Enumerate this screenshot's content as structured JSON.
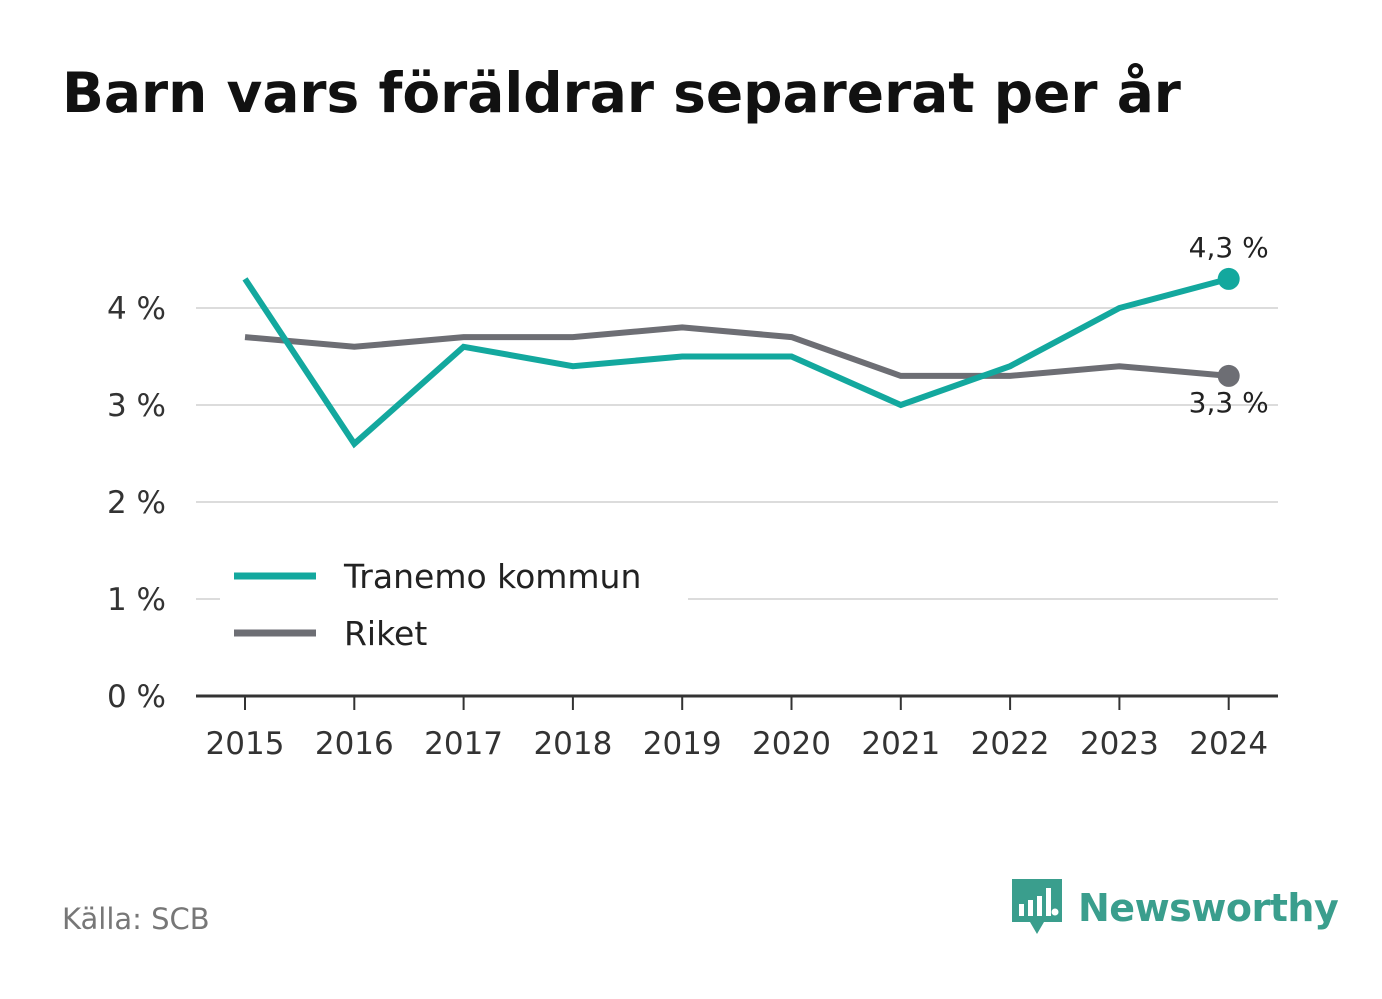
{
  "header": {
    "title": "Barn vars föräldrar separerat per år"
  },
  "chart_data": {
    "type": "line",
    "title": "Barn vars föräldrar separerat per år",
    "x": [
      "2015",
      "2016",
      "2017",
      "2018",
      "2019",
      "2020",
      "2021",
      "2022",
      "2023",
      "2024"
    ],
    "series": [
      {
        "name": "Tranemo kommun",
        "color": "#13a89e",
        "values": [
          4.3,
          2.6,
          3.6,
          3.4,
          3.5,
          3.5,
          3.0,
          3.4,
          4.0,
          4.3
        ],
        "end_label": "4,3 %"
      },
      {
        "name": "Riket",
        "color": "#6d6e74",
        "values": [
          3.7,
          3.6,
          3.7,
          3.7,
          3.8,
          3.7,
          3.3,
          3.3,
          3.4,
          3.3
        ],
        "end_label": "3,3 %"
      }
    ],
    "y_ticks": [
      {
        "value": 0,
        "label": "0 %"
      },
      {
        "value": 1,
        "label": "1 %"
      },
      {
        "value": 2,
        "label": "2 %"
      },
      {
        "value": 3,
        "label": "3 %"
      },
      {
        "value": 4,
        "label": "4 %"
      }
    ],
    "ylim": [
      0,
      4.5
    ],
    "grid": true,
    "legend_position": "bottom-left",
    "xlabel": "",
    "ylabel": ""
  },
  "footer": {
    "source": "Källa: SCB",
    "brand": "Newsworthy",
    "brand_color": "#3a9e8d"
  }
}
